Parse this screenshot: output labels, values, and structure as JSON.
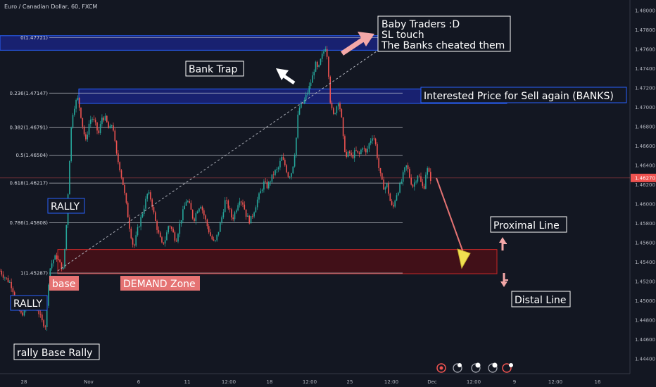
{
  "chart_data": {
    "type": "candlestick",
    "title": "Euro / Canadian Dollar, 60, FXCM",
    "y_axis": {
      "range": [
        1.4432,
        1.4808
      ],
      "ticks": [
        "1.48000",
        "1.47800",
        "1.47600",
        "1.47400",
        "1.47200",
        "1.47000",
        "1.46800",
        "1.46600",
        "1.46400",
        "1.46200",
        "1.46000",
        "1.45800",
        "1.45600",
        "1.45400",
        "1.45200",
        "1.45000",
        "1.44800",
        "1.44600",
        "1.44400"
      ],
      "last_price": "1.46270"
    },
    "x_axis": {
      "ticks": [
        "28",
        "Nov",
        "6",
        "11",
        "12:00",
        "18",
        "12:00",
        "25",
        "12:00",
        "Dec",
        "12:00",
        "9",
        "12:00",
        "16"
      ]
    },
    "fib_levels": [
      {
        "label": "0(1.47721)",
        "value": 1.47721
      },
      {
        "label": "0.236(1.47147)",
        "value": 1.47147
      },
      {
        "label": "0.382(1.46791)",
        "value": 1.46791
      },
      {
        "label": "0.5(1.46504)",
        "value": 1.46504
      },
      {
        "label": "0.618(1.46217)",
        "value": 1.46217
      },
      {
        "label": "0.786(1.45808)",
        "value": 1.45808
      },
      {
        "label": "1(1.45287)",
        "value": 1.45287
      }
    ],
    "price_path": [
      [
        0,
        1.4531
      ],
      [
        5,
        1.4526
      ],
      [
        10,
        1.4522
      ],
      [
        15,
        1.4518
      ],
      [
        20,
        1.4508
      ],
      [
        25,
        1.4493
      ],
      [
        30,
        1.4486
      ],
      [
        35,
        1.4489
      ],
      [
        40,
        1.4497
      ],
      [
        45,
        1.4502
      ],
      [
        50,
        1.4496
      ],
      [
        55,
        1.4488
      ],
      [
        60,
        1.4478
      ],
      [
        65,
        1.4474
      ],
      [
        70,
        1.4531
      ],
      [
        75,
        1.4542
      ],
      [
        80,
        1.4546
      ],
      [
        85,
        1.4538
      ],
      [
        90,
        1.4532
      ],
      [
        95,
        1.4586
      ],
      [
        98,
        1.4634
      ],
      [
        102,
        1.469
      ],
      [
        106,
        1.4702
      ],
      [
        110,
        1.471
      ],
      [
        114,
        1.4696
      ],
      [
        118,
        1.4678
      ],
      [
        122,
        1.4664
      ],
      [
        126,
        1.4682
      ],
      [
        130,
        1.469
      ],
      [
        135,
        1.4683
      ],
      [
        140,
        1.4672
      ],
      [
        145,
        1.469
      ],
      [
        150,
        1.4688
      ],
      [
        155,
        1.4676
      ],
      [
        160,
        1.4684
      ],
      [
        165,
        1.4652
      ],
      [
        170,
        1.4638
      ],
      [
        175,
        1.462
      ],
      [
        180,
        1.4596
      ],
      [
        185,
        1.4572
      ],
      [
        190,
        1.4554
      ],
      [
        195,
        1.4572
      ],
      [
        200,
        1.4585
      ],
      [
        205,
        1.4598
      ],
      [
        210,
        1.4612
      ],
      [
        215,
        1.4604
      ],
      [
        220,
        1.4584
      ],
      [
        225,
        1.457
      ],
      [
        230,
        1.4558
      ],
      [
        235,
        1.4564
      ],
      [
        240,
        1.458
      ],
      [
        245,
        1.4572
      ],
      [
        250,
        1.4562
      ],
      [
        255,
        1.4578
      ],
      [
        260,
        1.4592
      ],
      [
        265,
        1.4605
      ],
      [
        270,
        1.4597
      ],
      [
        275,
        1.4583
      ],
      [
        280,
        1.4594
      ],
      [
        285,
        1.46
      ],
      [
        290,
        1.4588
      ],
      [
        295,
        1.4576
      ],
      [
        300,
        1.4565
      ],
      [
        305,
        1.4559
      ],
      [
        310,
        1.4571
      ],
      [
        315,
        1.4586
      ],
      [
        320,
        1.4604
      ],
      [
        325,
        1.4596
      ],
      [
        330,
        1.4584
      ],
      [
        335,
        1.4594
      ],
      [
        340,
        1.4606
      ],
      [
        345,
        1.4601
      ],
      [
        350,
        1.4588
      ],
      [
        355,
        1.4582
      ],
      [
        360,
        1.4591
      ],
      [
        365,
        1.4603
      ],
      [
        370,
        1.4612
      ],
      [
        375,
        1.4622
      ],
      [
        380,
        1.4618
      ],
      [
        385,
        1.4626
      ],
      [
        390,
        1.4633
      ],
      [
        395,
        1.4636
      ],
      [
        400,
        1.4648
      ],
      [
        405,
        1.464
      ],
      [
        410,
        1.4628
      ],
      [
        415,
        1.4634
      ],
      [
        420,
        1.466
      ],
      [
        424,
        1.4698
      ],
      [
        428,
        1.4702
      ],
      [
        432,
        1.4706
      ],
      [
        436,
        1.4714
      ],
      [
        440,
        1.4722
      ],
      [
        444,
        1.4732
      ],
      [
        448,
        1.4745
      ],
      [
        452,
        1.4738
      ],
      [
        456,
        1.475
      ],
      [
        460,
        1.4758
      ],
      [
        463,
        1.4764
      ],
      [
        466,
        1.4746
      ],
      [
        469,
        1.4708
      ],
      [
        473,
        1.469
      ],
      [
        477,
        1.4698
      ],
      [
        481,
        1.4708
      ],
      [
        485,
        1.469
      ],
      [
        488,
        1.4664
      ],
      [
        492,
        1.4648
      ],
      [
        496,
        1.4654
      ],
      [
        500,
        1.4648
      ],
      [
        505,
        1.4655
      ],
      [
        510,
        1.465
      ],
      [
        515,
        1.466
      ],
      [
        520,
        1.4652
      ],
      [
        525,
        1.4664
      ],
      [
        530,
        1.4672
      ],
      [
        534,
        1.466
      ],
      [
        538,
        1.4638
      ],
      [
        542,
        1.4624
      ],
      [
        546,
        1.4616
      ],
      [
        550,
        1.462
      ],
      [
        554,
        1.4604
      ],
      [
        558,
        1.4594
      ],
      [
        562,
        1.4608
      ],
      [
        566,
        1.4615
      ],
      [
        570,
        1.4622
      ],
      [
        574,
        1.4634
      ],
      [
        578,
        1.464
      ],
      [
        582,
        1.4628
      ],
      [
        586,
        1.4618
      ],
      [
        590,
        1.4624
      ],
      [
        594,
        1.4632
      ],
      [
        598,
        1.4622
      ],
      [
        602,
        1.4615
      ],
      [
        606,
        1.4638
      ],
      [
        610,
        1.463
      ],
      [
        614,
        1.4622
      ]
    ],
    "zones": [
      {
        "name": "fib-0-zone",
        "top": 1.4774,
        "bottom": 1.4759
      },
      {
        "name": "sell-zone",
        "top": 1.4719,
        "bottom": 1.4704
      },
      {
        "name": "demand-zone",
        "top": 1.4553,
        "bottom": 1.4528
      }
    ],
    "grid": false,
    "legend": "none"
  },
  "annotations": {
    "baby_traders": [
      "Baby Traders :D",
      "SL touch",
      "The Banks cheated them"
    ],
    "bank_trap": "Bank Trap",
    "interested_price": "Interested Price for Sell again (BANKS)",
    "rally_upper": "RALLY",
    "rally_lower": "RALLY",
    "base": "base",
    "demand_zone": "DEMAND Zone",
    "rally_base_rally": "rally Base Rally",
    "proximal_line": "Proximal Line",
    "distal_line": "Distal Line"
  },
  "colors": {
    "background": "#131722",
    "up_candle": "#26a69a",
    "down_candle": "#ef5350",
    "fib_line": "#d1d4dc",
    "blue_zone": "#1a237e",
    "demand_zone": "#4a0f16",
    "price_line": "#ef5350"
  },
  "icons": [
    "replay-icon",
    "fire-icon",
    "news-icon",
    "calendar-icon",
    "bell-icon",
    "star-icon"
  ]
}
